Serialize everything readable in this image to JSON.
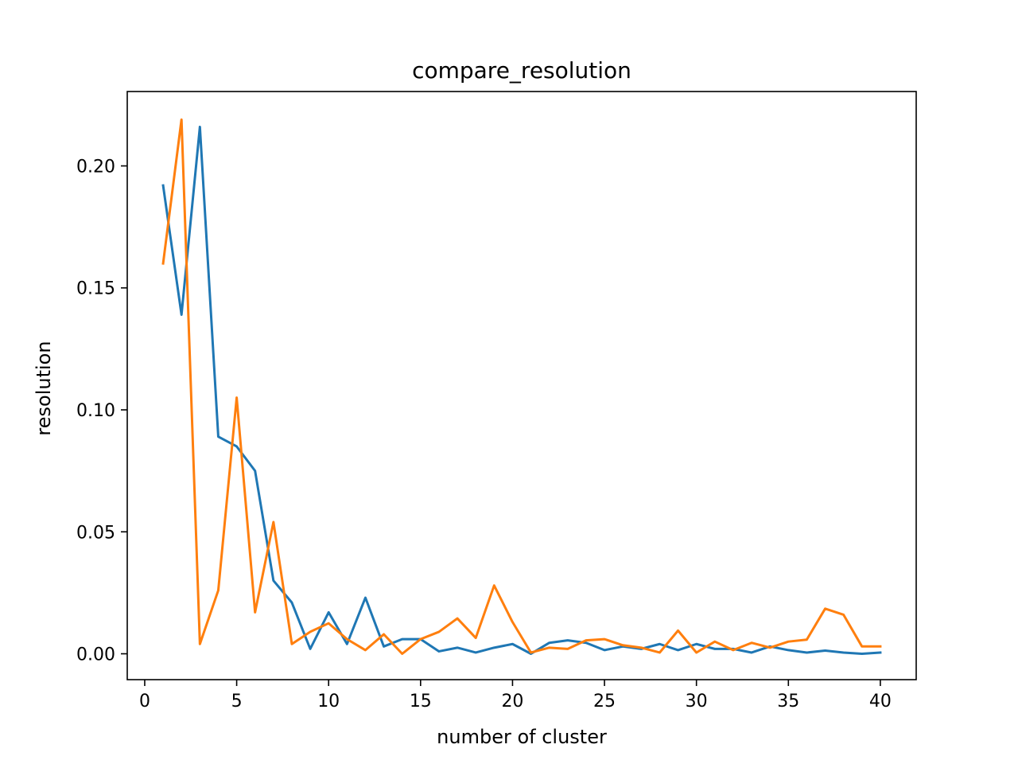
{
  "chart_data": {
    "type": "line",
    "title": "compare_resolution",
    "xlabel": "number of cluster",
    "ylabel": "resolution",
    "xlim": [
      -0.95,
      41.95
    ],
    "ylim": [
      -0.0106,
      0.2305
    ],
    "xticks": [
      0,
      5,
      10,
      15,
      20,
      25,
      30,
      35,
      40
    ],
    "xtick_labels": [
      "0",
      "5",
      "10",
      "15",
      "20",
      "25",
      "30",
      "35",
      "40"
    ],
    "yticks": [
      0.0,
      0.05,
      0.1,
      0.15,
      0.2
    ],
    "ytick_labels": [
      "0.00",
      "0.05",
      "0.10",
      "0.15",
      "0.20"
    ],
    "grid": false,
    "x": [
      1,
      2,
      3,
      4,
      5,
      6,
      7,
      8,
      9,
      10,
      11,
      12,
      13,
      14,
      15,
      16,
      17,
      18,
      19,
      20,
      21,
      22,
      23,
      24,
      25,
      26,
      27,
      28,
      29,
      30,
      31,
      32,
      33,
      34,
      35,
      36,
      37,
      38,
      39,
      40
    ],
    "series": [
      {
        "color": "#1f77b4",
        "values": [
          0.192,
          0.139,
          0.216,
          0.089,
          0.085,
          0.075,
          0.03,
          0.021,
          0.002,
          0.017,
          0.004,
          0.023,
          0.003,
          0.006,
          0.006,
          0.001,
          0.0025,
          0.0005,
          0.0025,
          0.004,
          0.0,
          0.0045,
          0.0055,
          0.0045,
          0.0015,
          0.003,
          0.002,
          0.004,
          0.0015,
          0.004,
          0.002,
          0.002,
          0.0005,
          0.003,
          0.0015,
          0.0005,
          0.0013,
          0.0005,
          0.0,
          0.0005
        ]
      },
      {
        "color": "#ff7f0e",
        "values": [
          0.16,
          0.219,
          0.004,
          0.026,
          0.105,
          0.017,
          0.054,
          0.004,
          0.009,
          0.0125,
          0.006,
          0.0015,
          0.008,
          0.0,
          0.006,
          0.009,
          0.0145,
          0.0065,
          0.028,
          0.013,
          0.0005,
          0.0025,
          0.002,
          0.0055,
          0.006,
          0.0035,
          0.0025,
          0.0005,
          0.0095,
          0.0005,
          0.005,
          0.0015,
          0.0045,
          0.0025,
          0.005,
          0.0058,
          0.0185,
          0.016,
          0.003,
          0.003
        ]
      }
    ]
  }
}
